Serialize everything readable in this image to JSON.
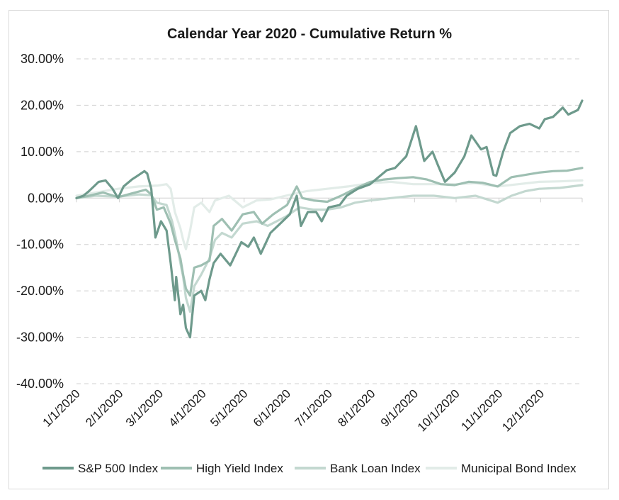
{
  "chart_data": {
    "type": "line",
    "title": "Calendar Year 2020 - Cumulative Return %",
    "xlabel": "",
    "ylabel": "",
    "ylim": [
      -40,
      30
    ],
    "yticks": [
      30,
      20,
      10,
      0,
      -10,
      -20,
      -30,
      -40
    ],
    "ytick_labels": [
      "30.00%",
      "20.00%",
      "10.00%",
      "0.00%",
      "-10.00%",
      "-20.00%",
      "-30.00%",
      "-40.00%"
    ],
    "xlim": [
      "2020-01-01",
      "2020-12-31"
    ],
    "xticks": [
      "2020-01-01",
      "2020-02-01",
      "2020-03-01",
      "2020-04-01",
      "2020-05-01",
      "2020-06-01",
      "2020-07-01",
      "2020-08-01",
      "2020-09-01",
      "2020-10-01",
      "2020-11-01",
      "2020-12-01"
    ],
    "xtick_labels": [
      "1/1/2020",
      "2/1/2020",
      "3/1/2020",
      "4/1/2020",
      "5/1/2020",
      "6/1/2020",
      "7/1/2020",
      "8/1/2020",
      "9/1/2020",
      "10/1/2020",
      "11/1/2020",
      "12/1/2020"
    ],
    "grid": true,
    "legend_position": "bottom",
    "series": [
      {
        "name": "S&P 500 Index",
        "color": "#6e9a8c",
        "points": [
          [
            "2020-01-01",
            0.0
          ],
          [
            "2020-01-06",
            0.5
          ],
          [
            "2020-01-10",
            1.5
          ],
          [
            "2020-01-17",
            3.5
          ],
          [
            "2020-01-22",
            3.8
          ],
          [
            "2020-01-27",
            2.0
          ],
          [
            "2020-01-31",
            0.0
          ],
          [
            "2020-02-04",
            2.5
          ],
          [
            "2020-02-10",
            4.0
          ],
          [
            "2020-02-14",
            4.8
          ],
          [
            "2020-02-19",
            5.8
          ],
          [
            "2020-02-21",
            5.3
          ],
          [
            "2020-02-24",
            2.0
          ],
          [
            "2020-02-27",
            -8.5
          ],
          [
            "2020-03-02",
            -5.0
          ],
          [
            "2020-03-06",
            -7.0
          ],
          [
            "2020-03-09",
            -14.0
          ],
          [
            "2020-03-12",
            -22.0
          ],
          [
            "2020-03-13",
            -17.0
          ],
          [
            "2020-03-16",
            -25.0
          ],
          [
            "2020-03-18",
            -23.0
          ],
          [
            "2020-03-20",
            -28.0
          ],
          [
            "2020-03-23",
            -30.0
          ],
          [
            "2020-03-26",
            -21.0
          ],
          [
            "2020-03-31",
            -20.0
          ],
          [
            "2020-04-03",
            -22.0
          ],
          [
            "2020-04-06",
            -17.5
          ],
          [
            "2020-04-09",
            -14.0
          ],
          [
            "2020-04-14",
            -12.0
          ],
          [
            "2020-04-21",
            -14.5
          ],
          [
            "2020-04-29",
            -9.5
          ],
          [
            "2020-05-04",
            -10.5
          ],
          [
            "2020-05-08",
            -8.5
          ],
          [
            "2020-05-13",
            -12.0
          ],
          [
            "2020-05-20",
            -7.5
          ],
          [
            "2020-05-27",
            -5.5
          ],
          [
            "2020-06-03",
            -3.5
          ],
          [
            "2020-06-08",
            0.5
          ],
          [
            "2020-06-11",
            -6.0
          ],
          [
            "2020-06-16",
            -3.0
          ],
          [
            "2020-06-22",
            -3.0
          ],
          [
            "2020-06-26",
            -5.0
          ],
          [
            "2020-07-01",
            -2.0
          ],
          [
            "2020-07-09",
            -1.5
          ],
          [
            "2020-07-14",
            0.5
          ],
          [
            "2020-07-22",
            2.0
          ],
          [
            "2020-07-31",
            3.0
          ],
          [
            "2020-08-06",
            4.5
          ],
          [
            "2020-08-12",
            6.0
          ],
          [
            "2020-08-18",
            6.5
          ],
          [
            "2020-08-26",
            9.0
          ],
          [
            "2020-09-02",
            15.5
          ],
          [
            "2020-09-08",
            8.0
          ],
          [
            "2020-09-14",
            10.0
          ],
          [
            "2020-09-18",
            7.0
          ],
          [
            "2020-09-23",
            3.5
          ],
          [
            "2020-09-30",
            5.5
          ],
          [
            "2020-10-07",
            9.0
          ],
          [
            "2020-10-12",
            13.5
          ],
          [
            "2020-10-19",
            10.5
          ],
          [
            "2020-10-23",
            11.0
          ],
          [
            "2020-10-28",
            5.0
          ],
          [
            "2020-10-30",
            4.8
          ],
          [
            "2020-11-04",
            10.0
          ],
          [
            "2020-11-09",
            14.0
          ],
          [
            "2020-11-16",
            15.5
          ],
          [
            "2020-11-23",
            16.0
          ],
          [
            "2020-11-30",
            15.0
          ],
          [
            "2020-12-04",
            17.0
          ],
          [
            "2020-12-10",
            17.5
          ],
          [
            "2020-12-17",
            19.5
          ],
          [
            "2020-12-21",
            18.0
          ],
          [
            "2020-12-28",
            19.0
          ],
          [
            "2020-12-31",
            21.0
          ]
        ]
      },
      {
        "name": "High Yield Index",
        "color": "#9ebfb2",
        "points": [
          [
            "2020-01-01",
            0.0
          ],
          [
            "2020-01-10",
            0.5
          ],
          [
            "2020-01-20",
            1.2
          ],
          [
            "2020-01-31",
            0.2
          ],
          [
            "2020-02-10",
            1.0
          ],
          [
            "2020-02-20",
            1.8
          ],
          [
            "2020-02-24",
            0.8
          ],
          [
            "2020-02-28",
            -2.5
          ],
          [
            "2020-03-04",
            -2.0
          ],
          [
            "2020-03-09",
            -5.5
          ],
          [
            "2020-03-12",
            -9.0
          ],
          [
            "2020-03-16",
            -13.0
          ],
          [
            "2020-03-18",
            -16.5
          ],
          [
            "2020-03-20",
            -19.5
          ],
          [
            "2020-03-23",
            -21.0
          ],
          [
            "2020-03-26",
            -15.0
          ],
          [
            "2020-03-31",
            -14.5
          ],
          [
            "2020-04-06",
            -13.5
          ],
          [
            "2020-04-09",
            -6.0
          ],
          [
            "2020-04-15",
            -4.5
          ],
          [
            "2020-04-22",
            -7.0
          ],
          [
            "2020-04-30",
            -3.5
          ],
          [
            "2020-05-08",
            -3.0
          ],
          [
            "2020-05-14",
            -5.5
          ],
          [
            "2020-05-22",
            -3.5
          ],
          [
            "2020-06-01",
            -1.5
          ],
          [
            "2020-06-08",
            2.5
          ],
          [
            "2020-06-12",
            0.0
          ],
          [
            "2020-06-20",
            -0.5
          ],
          [
            "2020-06-30",
            -0.8
          ],
          [
            "2020-07-10",
            0.5
          ],
          [
            "2020-07-20",
            2.0
          ],
          [
            "2020-07-31",
            3.5
          ],
          [
            "2020-08-10",
            4.0
          ],
          [
            "2020-08-20",
            4.3
          ],
          [
            "2020-08-31",
            4.5
          ],
          [
            "2020-09-10",
            4.0
          ],
          [
            "2020-09-20",
            3.0
          ],
          [
            "2020-09-30",
            2.8
          ],
          [
            "2020-10-10",
            3.5
          ],
          [
            "2020-10-20",
            3.3
          ],
          [
            "2020-10-31",
            2.5
          ],
          [
            "2020-11-10",
            4.5
          ],
          [
            "2020-11-20",
            5.0
          ],
          [
            "2020-11-30",
            5.5
          ],
          [
            "2020-12-10",
            5.8
          ],
          [
            "2020-12-20",
            5.9
          ],
          [
            "2020-12-31",
            6.5
          ]
        ]
      },
      {
        "name": "Bank Loan Index",
        "color": "#c3d8d0",
        "points": [
          [
            "2020-01-01",
            0.0
          ],
          [
            "2020-01-15",
            0.5
          ],
          [
            "2020-01-31",
            0.3
          ],
          [
            "2020-02-15",
            0.8
          ],
          [
            "2020-02-24",
            0.6
          ],
          [
            "2020-02-28",
            -1.0
          ],
          [
            "2020-03-06",
            -1.5
          ],
          [
            "2020-03-10",
            -5.0
          ],
          [
            "2020-03-13",
            -9.0
          ],
          [
            "2020-03-16",
            -14.0
          ],
          [
            "2020-03-18",
            -17.0
          ],
          [
            "2020-03-20",
            -21.5
          ],
          [
            "2020-03-23",
            -24.5
          ],
          [
            "2020-03-26",
            -19.0
          ],
          [
            "2020-03-31",
            -16.5
          ],
          [
            "2020-04-06",
            -13.0
          ],
          [
            "2020-04-10",
            -9.0
          ],
          [
            "2020-04-15",
            -7.5
          ],
          [
            "2020-04-22",
            -8.5
          ],
          [
            "2020-04-30",
            -5.5
          ],
          [
            "2020-05-10",
            -5.0
          ],
          [
            "2020-05-18",
            -6.0
          ],
          [
            "2020-05-31",
            -4.0
          ],
          [
            "2020-06-10",
            -2.0
          ],
          [
            "2020-06-20",
            -2.5
          ],
          [
            "2020-06-30",
            -2.5
          ],
          [
            "2020-07-10",
            -2.0
          ],
          [
            "2020-07-20",
            -1.0
          ],
          [
            "2020-07-31",
            -0.5
          ],
          [
            "2020-08-15",
            0.0
          ],
          [
            "2020-08-31",
            0.5
          ],
          [
            "2020-09-15",
            0.5
          ],
          [
            "2020-09-30",
            0.0
          ],
          [
            "2020-10-15",
            0.5
          ],
          [
            "2020-10-31",
            -1.0
          ],
          [
            "2020-11-10",
            0.5
          ],
          [
            "2020-11-20",
            1.5
          ],
          [
            "2020-11-30",
            2.0
          ],
          [
            "2020-12-15",
            2.2
          ],
          [
            "2020-12-31",
            2.8
          ]
        ]
      },
      {
        "name": "Municipal Bond Index",
        "color": "#e2ece8",
        "points": [
          [
            "2020-01-01",
            0.5
          ],
          [
            "2020-01-15",
            1.2
          ],
          [
            "2020-01-31",
            2.0
          ],
          [
            "2020-02-15",
            2.5
          ],
          [
            "2020-02-29",
            2.7
          ],
          [
            "2020-03-06",
            3.0
          ],
          [
            "2020-03-09",
            2.0
          ],
          [
            "2020-03-12",
            -3.0
          ],
          [
            "2020-03-16",
            -6.5
          ],
          [
            "2020-03-18",
            -9.0
          ],
          [
            "2020-03-20",
            -11.0
          ],
          [
            "2020-03-23",
            -7.0
          ],
          [
            "2020-03-26",
            -2.0
          ],
          [
            "2020-03-31",
            -1.0
          ],
          [
            "2020-04-06",
            -3.0
          ],
          [
            "2020-04-10",
            -0.5
          ],
          [
            "2020-04-20",
            0.5
          ],
          [
            "2020-04-30",
            -2.0
          ],
          [
            "2020-05-10",
            -0.5
          ],
          [
            "2020-05-20",
            -0.3
          ],
          [
            "2020-05-31",
            0.5
          ],
          [
            "2020-06-15",
            1.5
          ],
          [
            "2020-06-30",
            2.0
          ],
          [
            "2020-07-15",
            2.5
          ],
          [
            "2020-07-31",
            3.2
          ],
          [
            "2020-08-15",
            3.5
          ],
          [
            "2020-08-31",
            3.0
          ],
          [
            "2020-09-15",
            3.0
          ],
          [
            "2020-09-30",
            3.0
          ],
          [
            "2020-10-15",
            3.2
          ],
          [
            "2020-10-31",
            2.5
          ],
          [
            "2020-11-15",
            3.0
          ],
          [
            "2020-11-30",
            3.5
          ],
          [
            "2020-12-15",
            3.6
          ],
          [
            "2020-12-31",
            3.8
          ]
        ]
      }
    ]
  }
}
